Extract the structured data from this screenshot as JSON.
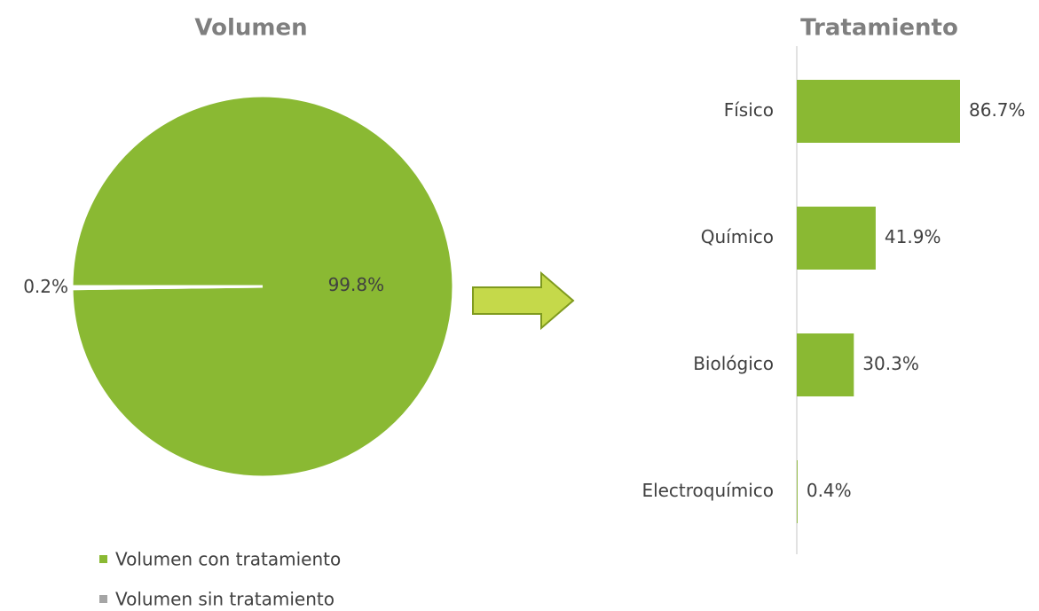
{
  "chart_data": [
    {
      "type": "pie",
      "title": "Volumen",
      "categories": [
        "Volumen con tratamiento",
        "Volumen sin tratamiento"
      ],
      "values": [
        99.8,
        0.2
      ],
      "value_labels": [
        "99.8%",
        "0.2%"
      ],
      "colors": [
        "#8ab933",
        "#a5a5a5"
      ],
      "legend": "bottom"
    },
    {
      "type": "bar",
      "orientation": "horizontal",
      "title": "Tratamiento",
      "categories": [
        "Físico",
        "Químico",
        "Biológico",
        "Electroquímico"
      ],
      "values": [
        86.7,
        41.9,
        30.3,
        0.4
      ],
      "value_labels": [
        "86.7%",
        "41.9%",
        "30.3%",
        "0.4%"
      ],
      "color": "#8ab933"
    }
  ]
}
